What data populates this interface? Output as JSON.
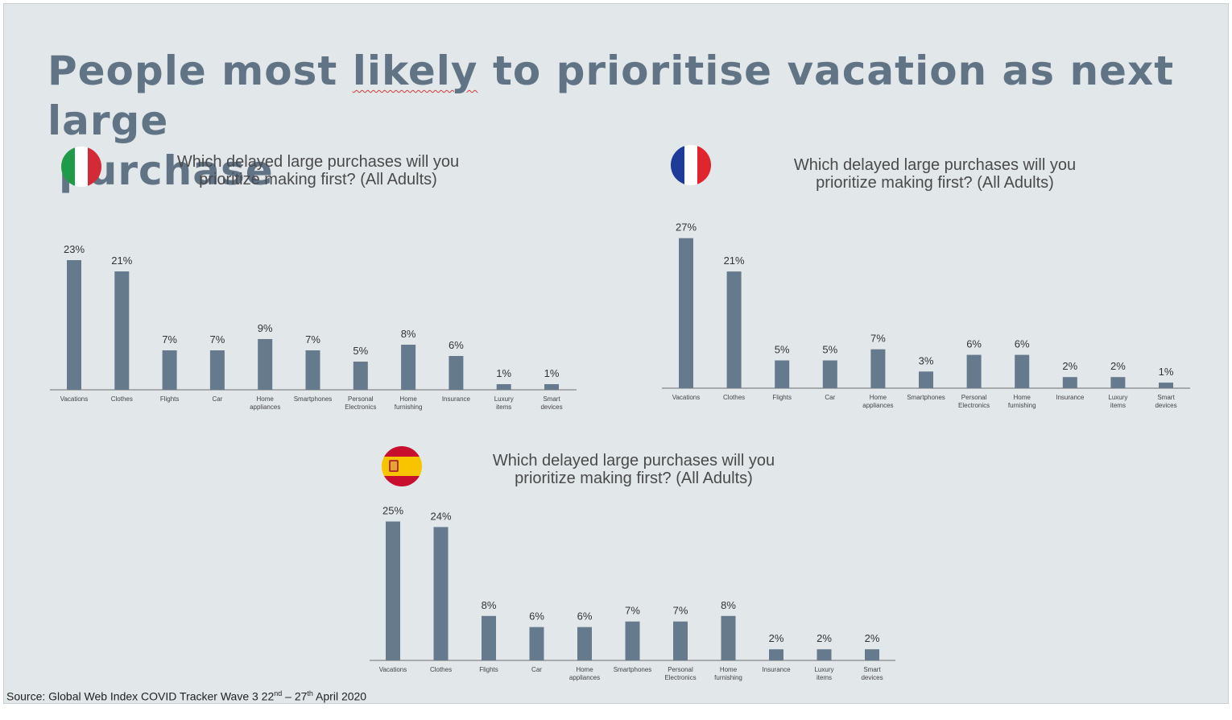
{
  "title": {
    "line1_pre": "People most ",
    "line1_mark": "likely",
    "line1_post": " to prioritise vacation as next large",
    "line2": "purchase"
  },
  "source": {
    "prefix": "Source: Global Web Index COVID Tracker Wave 3  22",
    "sup1": "nd",
    "mid": " – 27",
    "sup2": "th",
    "suffix": " April 2020"
  },
  "colors": {
    "bar": "#657a8c",
    "axis": "#6e6e6e",
    "title": "#607486"
  },
  "chart_data": [
    {
      "type": "bar",
      "country": "Italy",
      "flag_icon": "italy-flag-icon",
      "title": "Which delayed large purchases will you prioritize making first? (All Adults)",
      "categories": [
        "Vacations",
        "Clothes",
        "Flights",
        "Car",
        "Home appliances",
        "Smartphones",
        "Personal Electronics",
        "Home furnishing",
        "Insurance",
        "Luxury items",
        "Smart devices"
      ],
      "values": [
        23,
        21,
        7,
        7,
        9,
        7,
        5,
        8,
        6,
        1,
        1
      ],
      "value_labels": [
        "23%",
        "21%",
        "7%",
        "7%",
        "9%",
        "7%",
        "5%",
        "8%",
        "6%",
        "1%",
        "1%"
      ],
      "unit": "%"
    },
    {
      "type": "bar",
      "country": "France",
      "flag_icon": "france-flag-icon",
      "title": "Which delayed large purchases will you prioritize making first? (All Adults)",
      "categories": [
        "Vacations",
        "Clothes",
        "Flights",
        "Car",
        "Home appliances",
        "Smartphones",
        "Personal Electronics",
        "Home furnishing",
        "Insurance",
        "Luxury items",
        "Smart devices"
      ],
      "values": [
        27,
        21,
        5,
        5,
        7,
        3,
        6,
        6,
        2,
        2,
        1
      ],
      "value_labels": [
        "27%",
        "21%",
        "5%",
        "5%",
        "7%",
        "3%",
        "6%",
        "6%",
        "2%",
        "2%",
        "1%"
      ],
      "unit": "%"
    },
    {
      "type": "bar",
      "country": "Spain",
      "flag_icon": "spain-flag-icon",
      "title": "Which delayed large purchases will you prioritize making first? (All Adults)",
      "categories": [
        "Vacations",
        "Clothes",
        "Flights",
        "Car",
        "Home appliances",
        "Smartphones",
        "Personal Electronics",
        "Home furnishing",
        "Insurance",
        "Luxury items",
        "Smart devices"
      ],
      "values": [
        25,
        24,
        8,
        6,
        6,
        7,
        7,
        8,
        2,
        2,
        2
      ],
      "value_labels": [
        "25%",
        "24%",
        "8%",
        "6%",
        "6%",
        "7%",
        "7%",
        "8%",
        "2%",
        "2%",
        "2%"
      ],
      "unit": "%"
    }
  ]
}
